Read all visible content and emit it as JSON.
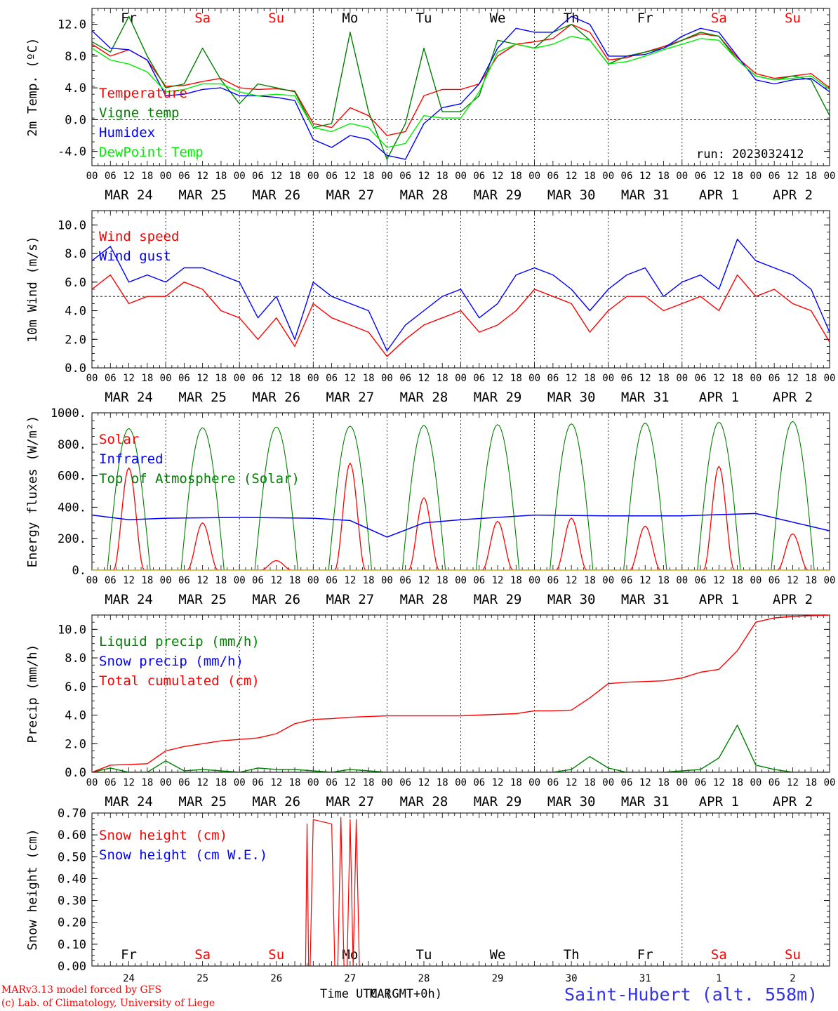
{
  "meta": {
    "run_label": "run: 2023032412",
    "credit_line1": "MARv3.13 model forced by GFS",
    "credit_line2": "(c) Lab. of Climatology, University of Liege",
    "station": "Saint-Hubert (alt. 558m)",
    "time_axis_label": "Time UTC (GMT+0h)",
    "overlap_label": "MAR"
  },
  "colors": {
    "red": "#ff0000",
    "green": "#008000",
    "blue": "#0000ff",
    "lightgreen": "#00ee00",
    "station": "#3333ee",
    "weekend": "#ff0000",
    "weekday": "#000000"
  },
  "days": {
    "names": [
      "Fr",
      "Sa",
      "Su",
      "Mo",
      "Tu",
      "We",
      "Th",
      "Fr",
      "Sa",
      "Su"
    ],
    "weekend": [
      false,
      true,
      true,
      false,
      false,
      false,
      false,
      false,
      true,
      true
    ],
    "dates": [
      "MAR 24",
      "MAR 25",
      "MAR 26",
      "MAR 27",
      "MAR 28",
      "MAR 29",
      "MAR 30",
      "MAR 31",
      "APR  1",
      "APR  2"
    ],
    "day_numbers": [
      "24",
      "25",
      "26",
      "27",
      "28",
      "29",
      "30",
      "31",
      "1",
      "2"
    ],
    "hour_ticks": [
      "00",
      "06",
      "12",
      "18"
    ],
    "final_tick": "00"
  },
  "chart_data": [
    {
      "type": "line",
      "ylabel": "2m Temp. (ºC)",
      "ylim": [
        -5.8,
        14.0
      ],
      "yticks": [
        "-4.0",
        "0.0",
        "4.0",
        "8.0",
        "12.0"
      ],
      "ytick_values": [
        -4,
        0,
        4,
        8,
        12
      ],
      "dashed_ref": 0,
      "x": [
        0,
        6,
        12,
        18,
        24,
        30,
        36,
        42,
        48,
        54,
        60,
        66,
        72,
        78,
        84,
        90,
        96,
        102,
        108,
        114,
        120,
        126,
        132,
        138,
        144,
        150,
        156,
        162,
        168,
        174,
        180,
        186,
        192,
        198,
        204,
        210,
        216,
        222,
        228,
        234,
        240
      ],
      "series": [
        {
          "name": "Temperature",
          "color": "#ff0000",
          "values": [
            9.5,
            8.0,
            8.8,
            7.5,
            4.2,
            4.3,
            4.8,
            5.2,
            4.0,
            3.8,
            3.9,
            3.6,
            -0.5,
            -1.0,
            1.5,
            0.5,
            -2.0,
            -1.5,
            3.0,
            3.8,
            3.8,
            4.5,
            8.0,
            9.5,
            9.8,
            10.2,
            12.0,
            11.0,
            7.5,
            7.8,
            8.5,
            9.2,
            10.0,
            10.8,
            10.5,
            7.8,
            5.8,
            5.2,
            5.5,
            5.8,
            4.0
          ]
        },
        {
          "name": "Vigne temp",
          "color": "#008000",
          "values": [
            9.8,
            8.5,
            13.0,
            8.0,
            4.0,
            4.5,
            9.0,
            5.0,
            2.0,
            4.5,
            4.0,
            3.5,
            -1.0,
            -0.5,
            11.0,
            1.0,
            -5.0,
            -0.5,
            9.0,
            1.0,
            1.0,
            3.0,
            10.0,
            9.5,
            9.0,
            11.0,
            12.0,
            10.0,
            7.0,
            8.0,
            8.5,
            9.0,
            10.0,
            11.0,
            10.5,
            7.5,
            5.5,
            5.0,
            5.5,
            5.0,
            0.5
          ]
        },
        {
          "name": "Humidex",
          "color": "#0000ff",
          "values": [
            11.2,
            9.0,
            8.8,
            7.5,
            3.0,
            3.2,
            3.8,
            4.0,
            3.0,
            3.0,
            2.8,
            2.4,
            -2.5,
            -3.5,
            -2.0,
            -2.5,
            -4.5,
            -5.0,
            -0.5,
            1.5,
            2.0,
            4.5,
            9.0,
            11.5,
            11.0,
            11.0,
            13.0,
            12.0,
            8.0,
            8.0,
            8.2,
            9.0,
            10.5,
            11.5,
            11.0,
            8.0,
            5.0,
            4.5,
            5.0,
            5.2,
            3.5
          ]
        },
        {
          "name": "DewPoint Temp",
          "color": "#00ee00",
          "values": [
            9.0,
            7.5,
            7.0,
            6.0,
            3.5,
            3.8,
            4.5,
            4.5,
            3.5,
            3.0,
            3.2,
            3.0,
            -1.0,
            -1.5,
            -0.5,
            -1.0,
            -3.5,
            -3.0,
            0.5,
            0.2,
            0.2,
            3.5,
            8.5,
            9.5,
            9.0,
            9.5,
            10.5,
            10.0,
            7.0,
            7.3,
            8.0,
            8.8,
            9.5,
            10.2,
            10.0,
            7.5,
            5.5,
            5.0,
            5.2,
            5.5,
            3.8
          ]
        }
      ]
    },
    {
      "type": "line",
      "ylabel": "10m Wind (m/s)",
      "ylim": [
        0,
        11
      ],
      "yticks": [
        "0.0",
        "2.0",
        "4.0",
        "6.0",
        "8.0",
        "10.0"
      ],
      "ytick_values": [
        0,
        2,
        4,
        6,
        8,
        10
      ],
      "dashed_ref": 5,
      "x": [
        0,
        6,
        12,
        18,
        24,
        30,
        36,
        42,
        48,
        54,
        60,
        66,
        72,
        78,
        84,
        90,
        96,
        102,
        108,
        114,
        120,
        126,
        132,
        138,
        144,
        150,
        156,
        162,
        168,
        174,
        180,
        186,
        192,
        198,
        204,
        210,
        216,
        222,
        228,
        234,
        240
      ],
      "series": [
        {
          "name": "Wind speed",
          "color": "#ff0000",
          "values": [
            5.5,
            6.5,
            4.5,
            5.0,
            5.0,
            6.0,
            5.5,
            4.0,
            3.5,
            2.0,
            3.5,
            1.5,
            4.5,
            3.5,
            3.0,
            2.5,
            0.8,
            2.0,
            3.0,
            3.5,
            4.0,
            2.5,
            3.0,
            4.0,
            5.5,
            5.0,
            4.5,
            2.5,
            4.0,
            5.0,
            5.0,
            4.0,
            4.5,
            5.0,
            4.0,
            6.5,
            5.0,
            5.5,
            4.5,
            4.0,
            1.8
          ]
        },
        {
          "name": "Wind gust",
          "color": "#0000ff",
          "values": [
            7.5,
            8.5,
            6.0,
            6.5,
            6.0,
            7.0,
            7.0,
            6.5,
            6.0,
            3.5,
            5.0,
            2.0,
            6.0,
            5.0,
            4.5,
            4.0,
            1.2,
            3.0,
            4.0,
            5.0,
            5.5,
            3.5,
            4.5,
            6.5,
            7.0,
            6.5,
            5.5,
            4.0,
            5.5,
            6.5,
            7.0,
            5.0,
            6.0,
            6.5,
            5.5,
            9.0,
            7.5,
            7.0,
            6.5,
            5.5,
            2.5
          ]
        }
      ]
    },
    {
      "type": "line",
      "ylabel": "Energy fluxes (W/m²)",
      "ylim": [
        0,
        1000
      ],
      "yticks": [
        "0.",
        "200.",
        "400.",
        "600.",
        "800.",
        "1000."
      ],
      "ytick_values": [
        0,
        200,
        400,
        600,
        800,
        1000
      ],
      "toa_peaks": [
        900,
        905,
        910,
        915,
        920,
        925,
        930,
        935,
        940,
        945
      ],
      "series": [
        {
          "name": "Solar",
          "color": "#ff0000",
          "daily_peaks": [
            650,
            300,
            60,
            680,
            460,
            310,
            330,
            280,
            660,
            230
          ]
        },
        {
          "name": "Infrared",
          "color": "#0000ff",
          "x": [
            0,
            12,
            24,
            48,
            72,
            84,
            96,
            108,
            120,
            144,
            168,
            192,
            216,
            240
          ],
          "values": [
            350,
            320,
            330,
            335,
            330,
            315,
            210,
            300,
            320,
            350,
            345,
            345,
            360,
            250
          ]
        },
        {
          "name": "Top of Atmosphere (Solar)",
          "color": "#008000"
        }
      ]
    },
    {
      "type": "line",
      "ylabel": "Precip (mm/h)",
      "ylim": [
        0,
        11
      ],
      "yticks": [
        "0.0",
        "2.0",
        "4.0",
        "6.0",
        "8.0",
        "10.0"
      ],
      "ytick_values": [
        0,
        2,
        4,
        6,
        8,
        10
      ],
      "x": [
        0,
        6,
        12,
        18,
        24,
        30,
        36,
        42,
        48,
        54,
        60,
        66,
        72,
        78,
        84,
        90,
        96,
        102,
        108,
        114,
        120,
        126,
        132,
        138,
        144,
        150,
        156,
        162,
        168,
        174,
        180,
        186,
        192,
        198,
        204,
        210,
        216,
        222,
        228,
        234,
        240
      ],
      "series": [
        {
          "name": "Liquid precip (mm/h)",
          "color": "#008000",
          "values": [
            0.0,
            0.3,
            0.0,
            0.0,
            0.8,
            0.1,
            0.2,
            0.1,
            0.0,
            0.3,
            0.2,
            0.2,
            0.1,
            0.0,
            0.2,
            0.1,
            0.0,
            0.0,
            0.0,
            0.0,
            0.0,
            0.0,
            0.0,
            0.0,
            0.0,
            0.0,
            0.2,
            1.1,
            0.3,
            0.0,
            0.0,
            0.0,
            0.1,
            0.2,
            1.0,
            3.3,
            0.5,
            0.2,
            0.0,
            0.0,
            0.0
          ]
        },
        {
          "name": "Snow precip (mm/h)",
          "color": "#0000ff",
          "values": [
            0,
            0,
            0,
            0,
            0,
            0,
            0,
            0,
            0,
            0,
            0,
            0,
            0,
            0,
            0,
            0,
            0,
            0,
            0,
            0,
            0,
            0,
            0,
            0,
            0,
            0,
            0,
            0,
            0,
            0,
            0,
            0,
            0,
            0,
            0,
            0,
            0,
            0,
            0,
            0,
            0
          ]
        },
        {
          "name": "Total cumulated (cm)",
          "color": "#ff0000",
          "values": [
            0.0,
            0.5,
            0.55,
            0.6,
            1.5,
            1.8,
            2.0,
            2.2,
            2.3,
            2.4,
            2.7,
            3.4,
            3.7,
            3.75,
            3.85,
            3.9,
            3.95,
            3.95,
            3.95,
            3.95,
            3.95,
            4.0,
            4.05,
            4.1,
            4.3,
            4.3,
            4.35,
            5.2,
            6.2,
            6.3,
            6.35,
            6.4,
            6.6,
            7.0,
            7.2,
            8.5,
            10.5,
            10.8,
            10.9,
            10.95,
            11.0
          ]
        }
      ]
    },
    {
      "type": "line",
      "ylabel": "Snow height (cm)",
      "ylim": [
        0,
        0.7
      ],
      "yticks": [
        "0.00",
        "0.10",
        "0.20",
        "0.30",
        "0.40",
        "0.50",
        "0.60",
        "0.70"
      ],
      "ytick_values": [
        0,
        0.1,
        0.2,
        0.3,
        0.4,
        0.5,
        0.6,
        0.7
      ],
      "series": [
        {
          "name": "Snow height (cm)",
          "color": "#ff0000",
          "x": [
            69.5,
            70,
            70.5,
            71,
            72,
            78,
            79,
            80,
            81,
            82,
            83,
            84,
            85,
            86,
            87,
            88
          ],
          "values": [
            0,
            0.65,
            0,
            0,
            0.67,
            0.65,
            0,
            0,
            0.68,
            0,
            0,
            0.67,
            0,
            0.67,
            0,
            0
          ]
        },
        {
          "name": "Snow height (cm W.E.)",
          "color": "#0000ff",
          "values": [
            0
          ]
        }
      ]
    }
  ]
}
